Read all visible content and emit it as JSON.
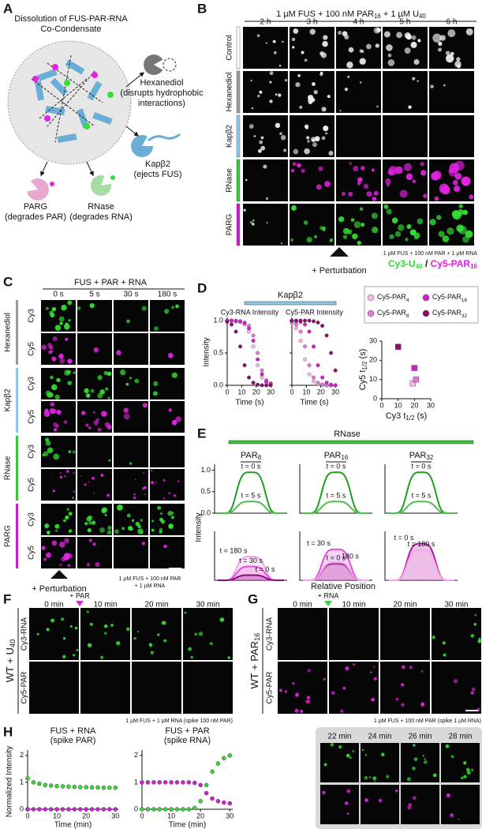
{
  "panel_a": {
    "label": "A",
    "title": [
      "Dissolution of FUS-PAR-RNA",
      "Co-Condensate"
    ],
    "agents": [
      {
        "name": "Hexanediol",
        "desc": [
          "(disrupts hydrophobic",
          "interactions)"
        ]
      },
      {
        "name": "Kapβ2",
        "desc": [
          "(ejects FUS)"
        ]
      },
      {
        "name": "RNase",
        "desc": [
          "(degrades RNA)"
        ]
      },
      {
        "name": "PARG",
        "desc": [
          "(degrades PAR)"
        ]
      }
    ]
  },
  "panel_b": {
    "label": "B",
    "header": [
      "1 µM FUS + 100 nM PAR",
      {
        "sub": "16"
      },
      " + 1 µM U",
      {
        "sub": "40"
      }
    ],
    "times": [
      "2 h",
      "3 h",
      "4 h",
      "5 h",
      "6 h"
    ],
    "rows": [
      "Control",
      "Hexanediol",
      "Kapβ2",
      "RNase",
      "PARG"
    ],
    "colors": [
      "#ffffff",
      "#9a9a9a",
      "#8cc8ec",
      "#38c538",
      "#c81ec8"
    ],
    "perturbation": "+ Perturbation",
    "note": "1 µM FUS + 100 nM PAR + 1 µM RNA",
    "legend": [
      {
        "parts": [
          "Cy3-U",
          {
            "sub": "40"
          }
        ],
        "color": "#2fd92f"
      },
      {
        "parts": [
          "Cy5-PAR",
          {
            "sub": "16"
          }
        ],
        "color": "#e21ee2"
      }
    ],
    "legend_sep": " / "
  },
  "panel_c": {
    "label": "C",
    "header": "FUS + PAR + RNA",
    "times": [
      "0 s",
      "5 s",
      "30 s",
      "180 s"
    ],
    "groups": [
      "Hexanediol",
      "Kapβ2",
      "RNase",
      "PARG"
    ],
    "colors": [
      "#9a9a9a",
      "#8cc8ec",
      "#38c538",
      "#c81ec8"
    ],
    "channels": [
      "Cy3",
      "Cy5"
    ],
    "perturbation": "+ Perturbation",
    "note": [
      "1 µM FUS + 100 nM PAR",
      "+ 1 µM RNA"
    ]
  },
  "panel_d": {
    "label": "D",
    "agent": "Kapβ2",
    "agent_color": "#8cc8ec",
    "ylabel": "Intensity",
    "xlabel": "Time (s)",
    "xlim": [
      0,
      31
    ],
    "ylim": [
      0,
      1.05
    ],
    "xticks": [
      0,
      10,
      20,
      30
    ],
    "yticks": [
      {
        "value": 0,
        "label": "0.0"
      },
      {
        "value": 0.5,
        "label": "0.5"
      },
      {
        "value": 1,
        "label": "1.0"
      }
    ],
    "time": [
      0,
      3,
      6,
      9,
      12,
      15,
      18,
      21,
      24,
      27,
      30
    ],
    "series": [
      {
        "name": [
          "Cy5-PAR",
          {
            "sub": "4"
          }
        ],
        "color": "#f4b8ea"
      },
      {
        "name": [
          "Cy5-PAR",
          {
            "sub": "8"
          }
        ],
        "color": "#e677d9"
      },
      {
        "name": [
          "Cy5-PAR",
          {
            "sub": "16"
          }
        ],
        "color": "#d61bd0"
      },
      {
        "name": [
          "Cy5-PAR",
          {
            "sub": "32"
          }
        ],
        "color": "#8a0d72"
      }
    ],
    "plots": [
      {
        "title": "Cy3-RNA Intensity",
        "values": [
          [
            1.0,
            1.0,
            0.99,
            0.98,
            0.94,
            0.83,
            0.6,
            0.31,
            0.12,
            0.04,
            0.01
          ],
          [
            1.0,
            1.0,
            1.0,
            0.99,
            0.97,
            0.92,
            0.77,
            0.5,
            0.23,
            0.08,
            0.03
          ],
          [
            1.0,
            1.0,
            0.99,
            0.99,
            0.96,
            0.88,
            0.69,
            0.4,
            0.17,
            0.06,
            0.02
          ],
          [
            0.98,
            0.94,
            0.83,
            0.6,
            0.31,
            0.12,
            0.04,
            0.01,
            0,
            0,
            0
          ]
        ]
      },
      {
        "title": "Cy5-PAR Intensity",
        "values": [
          [
            0.96,
            0.88,
            0.69,
            0.4,
            0.17,
            0.06,
            0.02,
            0.01,
            0,
            0,
            0
          ],
          [
            0.98,
            0.94,
            0.83,
            0.6,
            0.31,
            0.12,
            0.04,
            0.01,
            0,
            0,
            0
          ],
          [
            1.0,
            0.99,
            0.98,
            0.94,
            0.83,
            0.6,
            0.31,
            0.12,
            0.04,
            0.01,
            0
          ],
          [
            1.0,
            1.0,
            1.0,
            1.0,
            1.0,
            0.99,
            0.97,
            0.92,
            0.77,
            0.5,
            0.23
          ]
        ]
      }
    ],
    "scatter": {
      "xlabel": [
        "Cy3 t",
        {
          "sub": "1/2"
        },
        " (s)"
      ],
      "ylabel": [
        "Cy5 t",
        {
          "sub": "1/2"
        },
        " (s)"
      ],
      "xlim": [
        0,
        30
      ],
      "ylim": [
        0,
        30
      ],
      "xticks": [
        0,
        10,
        20,
        30
      ],
      "yticks": [
        0,
        10,
        20,
        30
      ],
      "x": [
        19,
        21,
        20,
        10
      ],
      "y": [
        8,
        10,
        16,
        27
      ]
    }
  },
  "panel_e": {
    "label": "E",
    "agent": "RNase",
    "agent_color": "#38c538",
    "ylabel": "Intensity",
    "xlabel": "Relative Position",
    "ylim": [
      0,
      1.1
    ],
    "yticks": [
      {
        "value": 0,
        "label": "0.0"
      },
      {
        "value": 0.5,
        "label": "0.5"
      },
      {
        "value": 1,
        "label": "1.0"
      }
    ],
    "columns": [
      {
        "name": [
          "PAR",
          {
            "sub": "8"
          }
        ],
        "top": [
          {
            "label": "t = 0 s",
            "peak": 0.95,
            "color": "#1f9e1f"
          },
          {
            "label": "t = 5 s",
            "peak": 0.27,
            "color": "#4cbf4c"
          }
        ],
        "bottom": [
          {
            "label": "t = 180 s",
            "peak": 0.55,
            "color": "#f3a6ec"
          },
          {
            "label": "t = 30 s",
            "peak": 0.32,
            "color": "#e050d8"
          },
          {
            "label": "t = 0 s",
            "peak": 0.12,
            "color": "#8c0d7a"
          }
        ]
      },
      {
        "name": [
          "PAR",
          {
            "sub": "16"
          }
        ],
        "top": [
          {
            "label": "t = 0 s",
            "peak": 0.95,
            "color": "#1f9e1f"
          },
          {
            "label": "t = 5 s",
            "peak": 0.27,
            "color": "#4cbf4c"
          }
        ],
        "bottom": [
          {
            "label": "t = 30 s",
            "peak": 0.72,
            "color": "#e050d8"
          },
          {
            "label": "t = 0 s",
            "peak": 0.38,
            "color": "#8c0d7a"
          },
          {
            "label": "180 s",
            "peak": 0.42,
            "color": "#f3a6ec"
          }
        ]
      },
      {
        "name": [
          "PAR",
          {
            "sub": "32"
          }
        ],
        "top": [
          {
            "label": "t = 0 s",
            "peak": 0.95,
            "color": "#1f9e1f"
          },
          {
            "label": "t = 5 s",
            "peak": 0.27,
            "color": "#4cbf4c"
          }
        ],
        "bottom": [
          {
            "label": "t = 0 s",
            "peak": 0.85,
            "color": "#b01a9c"
          },
          {
            "label": "t = 180 s",
            "peak": 0.7,
            "color": "#f3a6ec"
          }
        ]
      }
    ]
  },
  "panel_f": {
    "label": "F",
    "times": [
      "0 min",
      "10 min",
      "20 min",
      "30 min"
    ],
    "spike": "+ PAR",
    "spike_color": "#e21ee2",
    "channels": [
      "Cy3-RNA",
      "Cy5-PAR"
    ],
    "condition": [
      "WT + U",
      {
        "sub": "40"
      }
    ],
    "note": "1 µM FUS + 1 µM RNA (spike 100 nM PAR)"
  },
  "panel_g": {
    "label": "G",
    "times": [
      "0 min",
      "10 min",
      "20 min",
      "30 min"
    ],
    "spike": "+ RNA",
    "spike_color": "#2fd92f",
    "channels": [
      "Cy3-RNA",
      "Cy5-PAR"
    ],
    "condition": [
      "WT + PAR",
      {
        "sub": "16"
      }
    ],
    "note": "1 µM FUS + 100 nM PAR (spike 1 µM RNA)",
    "inset_times": [
      "22 min",
      "24 min",
      "26 min",
      "28 min"
    ]
  },
  "panel_h": {
    "label": "H",
    "ylabel": "Normalized Intensity",
    "xlabel": "Time (min)",
    "xlim": [
      0,
      31
    ],
    "ylim": [
      0,
      2.2
    ],
    "xticks": [
      0,
      10,
      20,
      30
    ],
    "yticks": [
      0,
      1,
      2
    ],
    "x": [
      0,
      2,
      4,
      6,
      8,
      10,
      12,
      14,
      16,
      18,
      20,
      22,
      24,
      26,
      28,
      30
    ],
    "plots": [
      {
        "title": [
          "FUS + RNA",
          "(spike PAR)"
        ],
        "series": [
          {
            "color": "#3ad93a",
            "values": [
              1.15,
              1.0,
              0.95,
              0.9,
              0.88,
              0.86,
              0.85,
              0.84,
              0.83,
              0.82,
              0.82,
              0.81,
              0.81,
              0.8,
              0.8,
              0.8
            ]
          },
          {
            "color": "#d51fd5",
            "values": [
              0,
              0,
              0,
              0,
              0,
              0,
              0,
              0,
              0,
              0,
              0,
              0,
              0,
              0,
              0,
              0
            ]
          }
        ]
      },
      {
        "title": [
          "FUS + PAR",
          "(spike RNA)"
        ],
        "series": [
          {
            "color": "#d51fd5",
            "values": [
              1,
              1,
              1,
              1,
              1,
              1,
              1,
              1,
              1,
              0.98,
              0.9,
              0.6,
              0.4,
              0.3,
              0.25,
              0.22
            ]
          },
          {
            "color": "#3ad93a",
            "values": [
              0,
              0,
              0,
              0,
              0,
              0,
              0,
              0,
              0,
              0.05,
              0.3,
              0.9,
              1.4,
              1.7,
              1.9,
              2.0
            ]
          }
        ]
      }
    ]
  }
}
